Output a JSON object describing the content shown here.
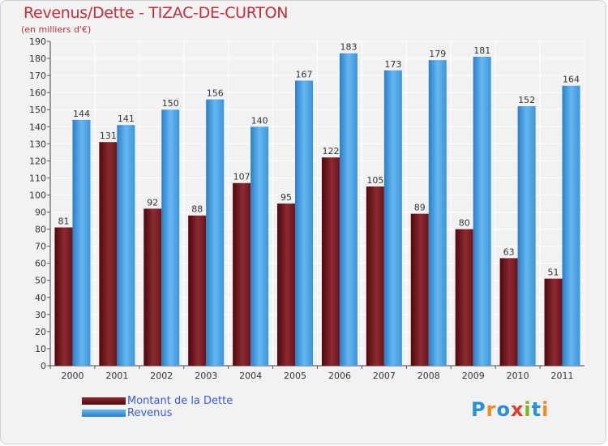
{
  "header": {
    "title": "Revenus/Dette - TIZAC-DE-CURTON",
    "subtitle": "(en milliers d'€)"
  },
  "legend": {
    "items": [
      {
        "label": "Montant de la Dette",
        "color": "#6b0f14"
      },
      {
        "label": "Revenus",
        "color": "#4aa3e4"
      }
    ]
  },
  "logo": {
    "text": "Proxiti",
    "letters": [
      {
        "ch": "P",
        "color": "#2b8fd8"
      },
      {
        "ch": "r",
        "color": "#f08a1c"
      },
      {
        "ch": "o",
        "color": "#2b8fd8"
      },
      {
        "ch": "x",
        "color": "#e23a2b"
      },
      {
        "ch": "i",
        "color": "#7ab51d"
      },
      {
        "ch": "t",
        "color": "#2b8fd8"
      },
      {
        "ch": "i",
        "color": "#f08a1c"
      }
    ]
  },
  "colors": {
    "dette_dark": "#5c0a0f",
    "dette_light": "#8e2c33",
    "revenus_dark": "#2f86cf",
    "revenus_light": "#62b2ee",
    "grid": "#ffffff",
    "axis_text": "#333333",
    "label_text": "#333333"
  },
  "chart_data": {
    "type": "bar",
    "title": "Revenus/Dette - TIZAC-DE-CURTON",
    "ylabel": "(en milliers d'€)",
    "xlabel": "",
    "categories": [
      "2000",
      "2001",
      "2002",
      "2003",
      "2004",
      "2005",
      "2006",
      "2007",
      "2008",
      "2009",
      "2010",
      "2011"
    ],
    "series": [
      {
        "name": "Montant de la Dette",
        "values": [
          81,
          131,
          92,
          88,
          107,
          95,
          122,
          105,
          89,
          80,
          63,
          51
        ]
      },
      {
        "name": "Revenus",
        "values": [
          144,
          141,
          150,
          156,
          140,
          167,
          183,
          173,
          179,
          181,
          152,
          164
        ]
      }
    ],
    "ylim": [
      0,
      190
    ],
    "yticks": [
      0,
      10,
      20,
      30,
      40,
      50,
      60,
      70,
      80,
      90,
      100,
      110,
      120,
      130,
      140,
      150,
      160,
      170,
      180,
      190
    ],
    "grid": true,
    "legend_position": "bottom-left"
  }
}
